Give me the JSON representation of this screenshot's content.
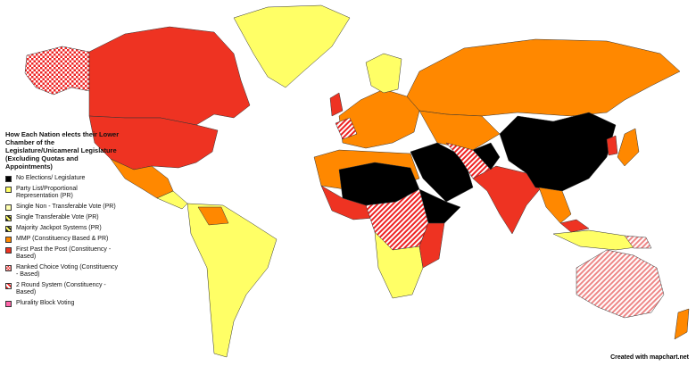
{
  "title": "How Each Nation elects their Lower Chamber of the Legislature/Unicameral Legislature (Excluding Quotas and Appointments)",
  "legend": [
    {
      "label": "No Elections/ Legislature"
    },
    {
      "label": "Party List/Proportional Representation (PR)"
    },
    {
      "label": "Single Non - Transferable Vote (PR)"
    },
    {
      "label": "Single Transferable Vote (PR)"
    },
    {
      "label": "Majority Jackpot Systems (PR)"
    },
    {
      "label": "MMP (Constituency Based & PR)"
    },
    {
      "label": "First Past the Post (Constituency - Based)"
    },
    {
      "label": "Ranked Choice Voting (Constituency - Based)"
    },
    {
      "label": "2 Round System (Constituency - Based)"
    },
    {
      "label": "Plurality Block Voting"
    }
  ],
  "credit": "Created with mapchart.net"
}
